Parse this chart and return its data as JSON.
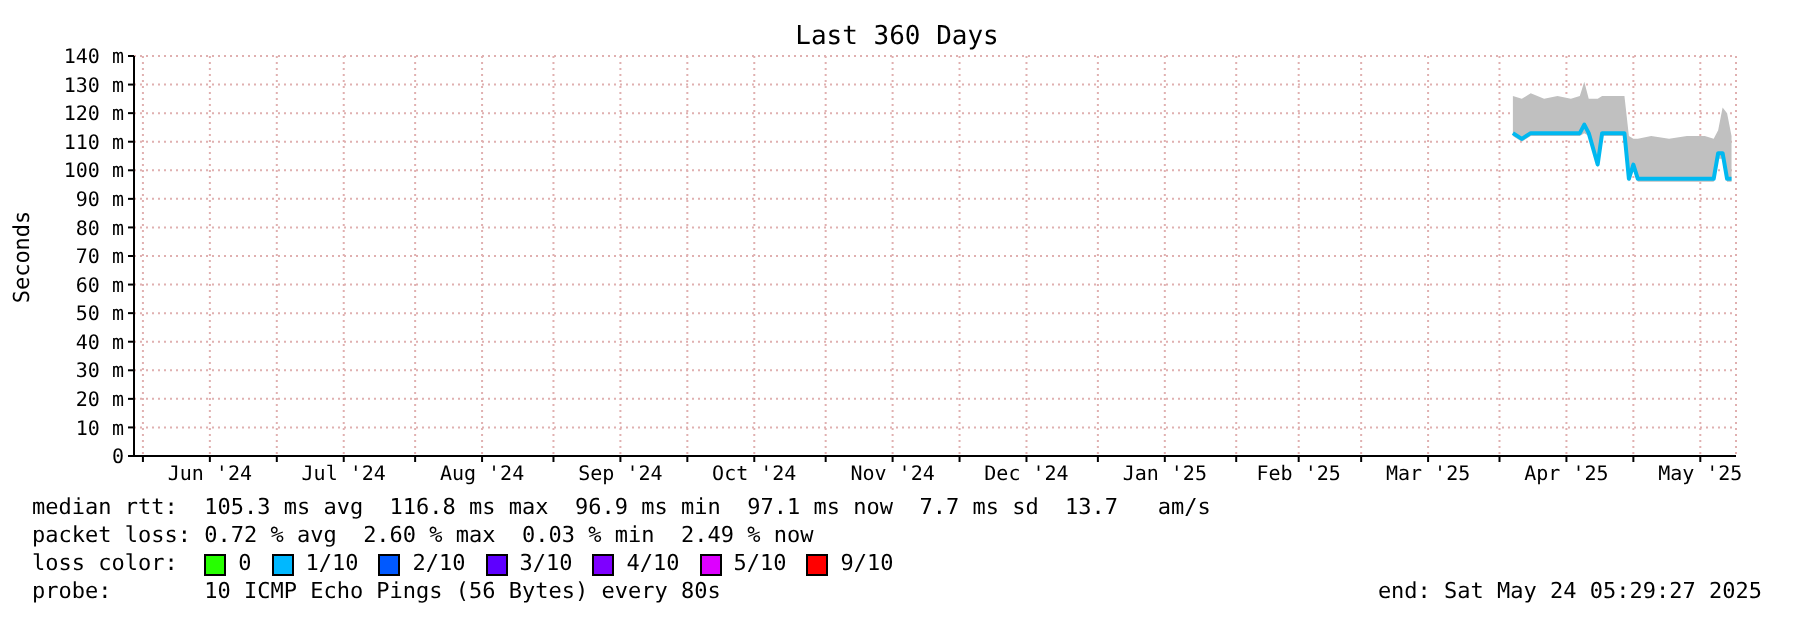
{
  "chart_data": {
    "type": "line",
    "title": "Last 360 Days",
    "ylabel": "Seconds",
    "legend_title": "loss color:",
    "legend": "bottom",
    "grid": true,
    "xlim": [
      "2024-05-30",
      "2025-05-24"
    ],
    "xticks": [
      {
        "value": "2024-06-01",
        "label": null
      },
      {
        "value": "2024-06-16",
        "label": "Jun '24"
      },
      {
        "value": "2024-07-01",
        "label": null
      },
      {
        "value": "2024-07-16",
        "label": "Jul '24"
      },
      {
        "value": "2024-08-01",
        "label": null
      },
      {
        "value": "2024-08-16",
        "label": "Aug '24"
      },
      {
        "value": "2024-09-01",
        "label": null
      },
      {
        "value": "2024-09-16",
        "label": "Sep '24"
      },
      {
        "value": "2024-10-01",
        "label": null
      },
      {
        "value": "2024-10-16",
        "label": "Oct '24"
      },
      {
        "value": "2024-11-01",
        "label": null
      },
      {
        "value": "2024-11-16",
        "label": "Nov '24"
      },
      {
        "value": "2024-12-01",
        "label": null
      },
      {
        "value": "2024-12-16",
        "label": "Dec '24"
      },
      {
        "value": "2025-01-01",
        "label": null
      },
      {
        "value": "2025-01-16",
        "label": "Jan '25"
      },
      {
        "value": "2025-02-01",
        "label": null
      },
      {
        "value": "2025-02-15",
        "label": "Feb '25"
      },
      {
        "value": "2025-03-01",
        "label": null
      },
      {
        "value": "2025-03-16",
        "label": "Mar '25"
      },
      {
        "value": "2025-04-01",
        "label": null
      },
      {
        "value": "2025-04-16",
        "label": "Apr '25"
      },
      {
        "value": "2025-05-01",
        "label": null
      },
      {
        "value": "2025-05-16",
        "label": "May '25"
      }
    ],
    "ylim": [
      0,
      140
    ],
    "yticks": [
      {
        "value": 0,
        "label": "0"
      },
      {
        "value": 10,
        "label": "10 m"
      },
      {
        "value": 20,
        "label": "20 m"
      },
      {
        "value": 30,
        "label": "30 m"
      },
      {
        "value": 40,
        "label": "40 m"
      },
      {
        "value": 50,
        "label": "50 m"
      },
      {
        "value": 60,
        "label": "60 m"
      },
      {
        "value": 70,
        "label": "70 m"
      },
      {
        "value": 80,
        "label": "80 m"
      },
      {
        "value": 90,
        "label": "90 m"
      },
      {
        "value": 100,
        "label": "100 m"
      },
      {
        "value": 110,
        "label": "110 m"
      },
      {
        "value": 120,
        "label": "120 m"
      },
      {
        "value": 130,
        "label": "130 m"
      },
      {
        "value": 140,
        "label": "140 m"
      }
    ],
    "series": [
      {
        "color": "#00b8f0",
        "x": [
          "2025-04-04",
          "2025-04-06",
          "2025-04-08",
          "2025-04-11",
          "2025-04-14",
          "2025-04-17",
          "2025-04-19",
          "2025-04-20",
          "2025-04-21",
          "2025-04-23",
          "2025-04-24",
          "2025-04-26",
          "2025-04-28",
          "2025-04-29",
          "2025-04-30",
          "2025-05-01",
          "2025-05-02",
          "2025-05-05",
          "2025-05-09",
          "2025-05-13",
          "2025-05-17",
          "2025-05-19",
          "2025-05-20",
          "2025-05-21",
          "2025-05-22",
          "2025-05-23"
        ],
        "values": [
          113,
          111,
          113,
          113,
          113,
          113,
          113,
          116,
          113,
          102,
          113,
          113,
          113,
          113,
          97,
          102,
          97,
          97,
          97,
          97,
          97,
          97,
          106,
          106,
          97,
          97
        ],
        "lower": [
          112,
          110,
          112,
          112,
          112,
          112,
          112,
          113,
          112,
          101,
          112,
          112,
          112,
          112,
          96,
          100,
          96,
          96,
          96,
          96,
          96,
          96,
          104,
          104,
          96,
          96
        ],
        "upper": [
          126,
          125,
          127,
          125,
          126,
          125,
          126,
          131,
          125,
          125,
          126,
          126,
          126,
          126,
          112,
          111,
          111,
          112,
          111,
          112,
          112,
          111,
          114,
          122,
          120,
          112
        ]
      },
      {
        "name": "0",
        "color": "#26ff00"
      },
      {
        "name": "1/10",
        "color": "#00b8ff"
      },
      {
        "name": "2/10",
        "color": "#0059ff"
      },
      {
        "name": "3/10",
        "color": "#5e00ff"
      },
      {
        "name": "4/10",
        "color": "#7e00ff"
      },
      {
        "name": "5/10",
        "color": "#dd00ff"
      },
      {
        "name": "9/10",
        "color": "#ff0000"
      }
    ],
    "annotations": [
      "median rtt:  105.3 ms avg  116.8 ms max  96.9 ms min  97.1 ms now  7.7 ms sd  13.7   am/s",
      "packet loss: 0.72 % avg  2.60 % max  0.03 % min  2.49 % now",
      "probe:       10 ICMP Echo Pings (56 Bytes) every 80s",
      "end: Sat May 24 05:29:27 2025"
    ]
  }
}
